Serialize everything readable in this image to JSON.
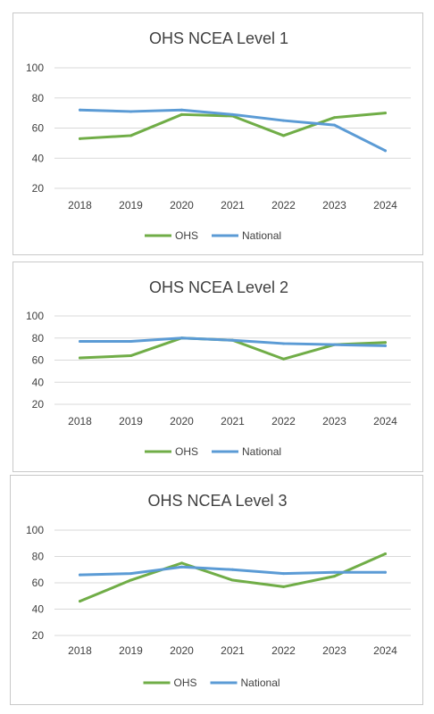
{
  "chart_data": [
    {
      "type": "line",
      "title": "OHS NCEA Level 1",
      "categories": [
        "2018",
        "2019",
        "2020",
        "2021",
        "2022",
        "2023",
        "2024"
      ],
      "yticks": [
        20,
        40,
        60,
        80,
        100
      ],
      "ylim": [
        20,
        100
      ],
      "grid": true,
      "legend_position": "bottom",
      "series": [
        {
          "name": "OHS",
          "color": "#70ad47",
          "values": [
            53,
            55,
            69,
            68,
            55,
            67,
            70
          ]
        },
        {
          "name": "National",
          "color": "#5b9bd5",
          "values": [
            72,
            71,
            72,
            69,
            65,
            62,
            45
          ]
        }
      ]
    },
    {
      "type": "line",
      "title": "OHS NCEA Level 2",
      "categories": [
        "2018",
        "2019",
        "2020",
        "2021",
        "2022",
        "2023",
        "2024"
      ],
      "yticks": [
        20,
        40,
        60,
        80,
        100
      ],
      "ylim": [
        20,
        100
      ],
      "grid": true,
      "legend_position": "bottom",
      "series": [
        {
          "name": "OHS",
          "color": "#70ad47",
          "values": [
            62,
            64,
            80,
            78,
            61,
            74,
            76
          ]
        },
        {
          "name": "National",
          "color": "#5b9bd5",
          "values": [
            77,
            77,
            80,
            78,
            75,
            74,
            73
          ]
        }
      ]
    },
    {
      "type": "line",
      "title": "OHS NCEA Level 3",
      "categories": [
        "2018",
        "2019",
        "2020",
        "2021",
        "2022",
        "2023",
        "2024"
      ],
      "yticks": [
        20,
        40,
        60,
        80,
        100
      ],
      "ylim": [
        20,
        100
      ],
      "grid": true,
      "legend_position": "bottom",
      "series": [
        {
          "name": "OHS",
          "color": "#70ad47",
          "values": [
            46,
            62,
            75,
            62,
            57,
            65,
            82
          ]
        },
        {
          "name": "National",
          "color": "#5b9bd5",
          "values": [
            66,
            67,
            72,
            70,
            67,
            68,
            68
          ]
        }
      ]
    }
  ]
}
